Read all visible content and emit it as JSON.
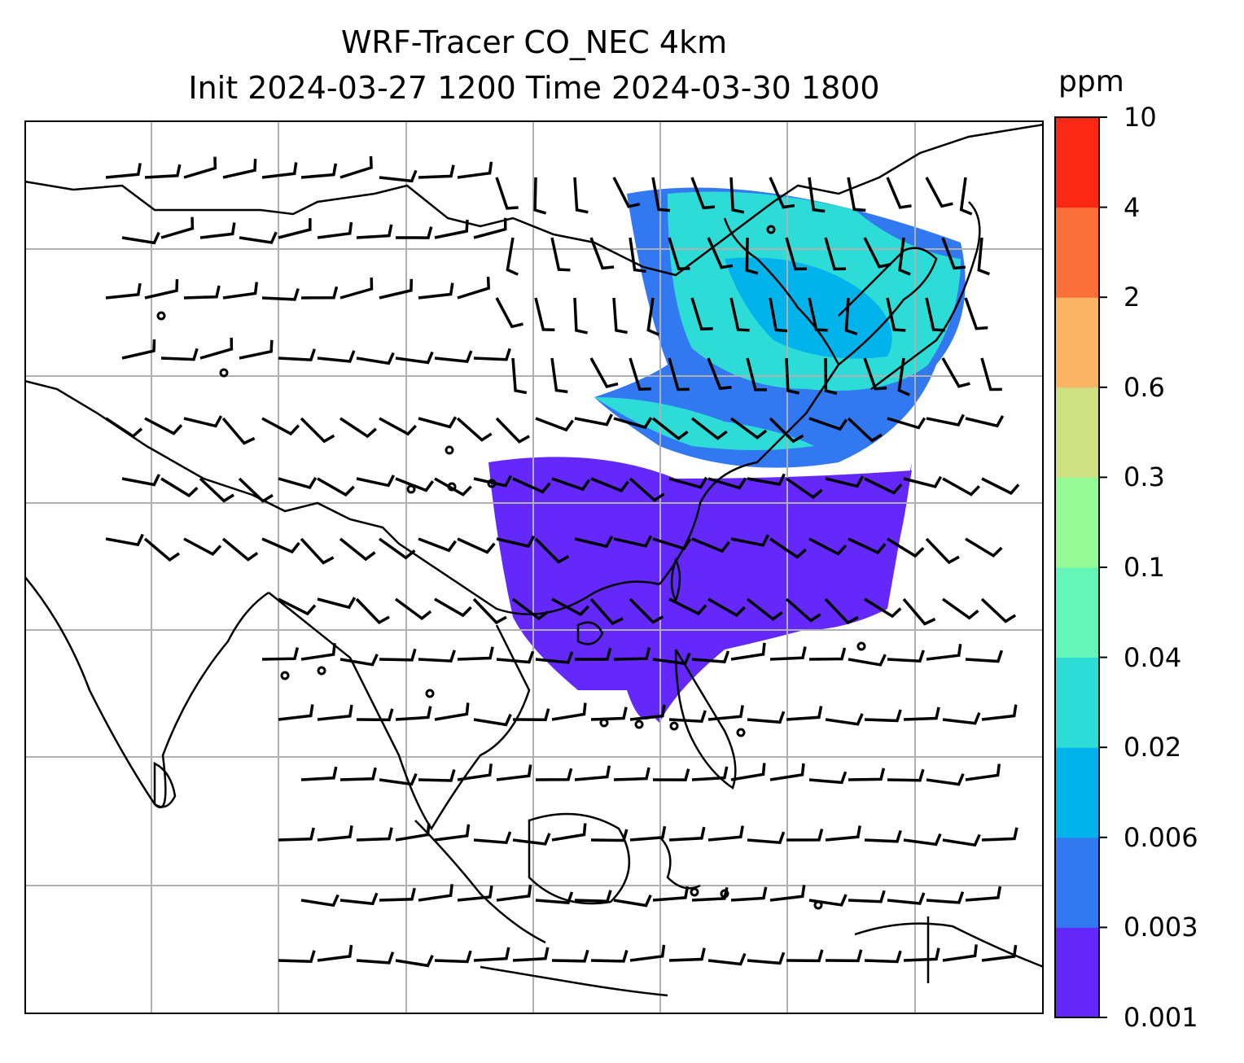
{
  "title": {
    "line1": "WRF-Tracer CO_NEC 4km",
    "line2": "Init 2024-03-27 1200 Time 2024-03-30 1800"
  },
  "colorbar": {
    "unit": "ppm",
    "levels": [
      "0.001",
      "0.003",
      "0.006",
      "0.02",
      "0.04",
      "0.1",
      "0.3",
      "0.6",
      "2",
      "4",
      "10"
    ],
    "colors": [
      "#6428fa",
      "#3278f0",
      "#00b4eb",
      "#2ddcd7",
      "#64f5b9",
      "#96fa96",
      "#cde182",
      "#fab464",
      "#fa7038",
      "#fa2814"
    ]
  },
  "map": {
    "gridlines": true,
    "features": [
      "coastlines",
      "country-borders",
      "wind-barbs",
      "tracer-concentration-shading"
    ]
  }
}
